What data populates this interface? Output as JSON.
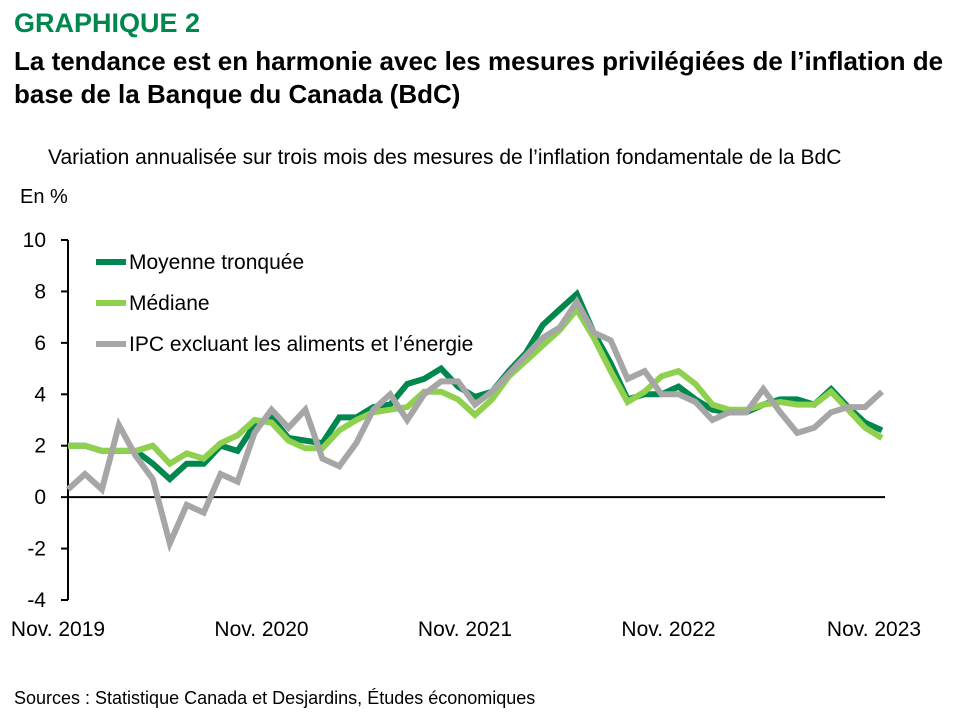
{
  "header": {
    "kicker": "GRAPHIQUE 2",
    "title": "La tendance est en harmonie avec les mesures privilégiées de l’inflation de base de la Banque du Canada (BdC)",
    "subtitle": "Variation annualisée sur trois mois des mesures de l’inflation fondamentale de la BdC",
    "unit": "En %"
  },
  "footer": {
    "source": "Sources : Statistique Canada et Desjardins, Études économiques"
  },
  "chart_data": {
    "type": "line",
    "title": "Variation annualisée sur trois mois des mesures de l’inflation fondamentale de la BdC",
    "ylabel": "En %",
    "xlabel": "",
    "ylim": [
      -4,
      10
    ],
    "yticks": [
      -4,
      -2,
      0,
      2,
      4,
      6,
      8,
      10
    ],
    "x_start": "Nov. 2019",
    "x_end": "Nov. 2023",
    "x_frequency": "monthly",
    "xtick_labels": [
      {
        "label": "Nov. 2019",
        "index": 0
      },
      {
        "label": "Nov. 2020",
        "index": 12
      },
      {
        "label": "Nov. 2021",
        "index": 24
      },
      {
        "label": "Nov. 2022",
        "index": 36
      },
      {
        "label": "Nov. 2023",
        "index": 48
      }
    ],
    "grid": false,
    "legend_position": "top-left",
    "series": [
      {
        "name": "Moyenne tronquée",
        "color": "#00874e",
        "values": [
          2.0,
          2.0,
          1.8,
          1.8,
          1.8,
          1.3,
          0.7,
          1.3,
          1.3,
          2.0,
          1.8,
          2.8,
          3.1,
          2.3,
          2.2,
          2.1,
          3.1,
          3.1,
          3.5,
          3.6,
          4.4,
          4.6,
          5.0,
          4.3,
          3.9,
          4.1,
          4.9,
          5.6,
          6.7,
          7.3,
          7.9,
          6.4,
          5.2,
          3.8,
          4.0,
          4.0,
          4.3,
          3.8,
          3.4,
          3.3,
          3.3,
          3.6,
          3.8,
          3.8,
          3.6,
          4.2,
          3.5,
          2.9,
          2.6
        ]
      },
      {
        "name": "Médiane",
        "color": "#8fd14f",
        "values": [
          2.0,
          2.0,
          1.8,
          1.8,
          1.8,
          2.0,
          1.3,
          1.7,
          1.5,
          2.1,
          2.4,
          3.0,
          2.9,
          2.2,
          1.9,
          1.9,
          2.6,
          3.0,
          3.3,
          3.4,
          3.5,
          4.1,
          4.1,
          3.8,
          3.2,
          3.8,
          4.7,
          5.3,
          5.9,
          6.5,
          7.3,
          6.2,
          4.9,
          3.7,
          4.1,
          4.7,
          4.9,
          4.4,
          3.6,
          3.4,
          3.4,
          3.6,
          3.7,
          3.6,
          3.6,
          4.1,
          3.4,
          2.7,
          2.3
        ]
      },
      {
        "name": "IPC excluant les aliments et l’énergie",
        "color": "#a6a6a6",
        "values": [
          0.3,
          0.9,
          0.3,
          2.8,
          1.6,
          0.7,
          -1.8,
          -0.3,
          -0.6,
          0.9,
          0.6,
          2.5,
          3.4,
          2.7,
          3.4,
          1.5,
          1.2,
          2.1,
          3.4,
          4.0,
          3.0,
          4.0,
          4.5,
          4.5,
          3.6,
          4.1,
          4.8,
          5.5,
          6.2,
          6.6,
          7.6,
          6.4,
          6.1,
          4.6,
          4.9,
          4.0,
          4.0,
          3.7,
          3.0,
          3.3,
          3.3,
          4.2,
          3.3,
          2.5,
          2.7,
          3.3,
          3.5,
          3.5,
          4.1
        ]
      }
    ]
  }
}
